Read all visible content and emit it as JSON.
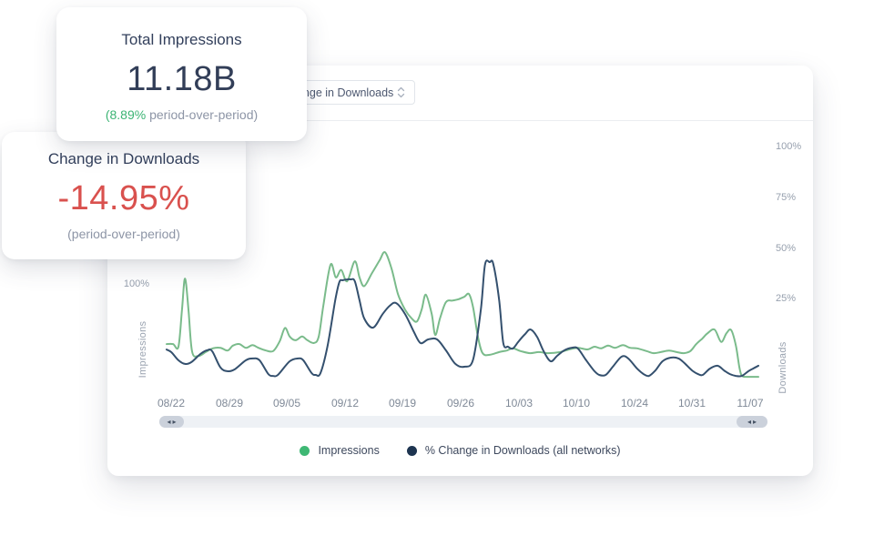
{
  "cards": {
    "impressions": {
      "title": "Total Impressions",
      "value": "11.18B",
      "delta_green": "(8.89%",
      "delta_gray": " period-over-period)"
    },
    "downloads": {
      "title": "Change in Downloads",
      "value": "-14.95%",
      "sub": "(period-over-period)"
    }
  },
  "panel": {
    "dropdown": {
      "value": "Change in Downloads"
    }
  },
  "scrollbar": {
    "left_arrow": "◂",
    "right_arrow": "▸"
  },
  "colors": {
    "accent_green": "#3cb474",
    "negative_red": "#d9514e",
    "navy_text": "#33405c"
  },
  "chart_data": {
    "type": "line",
    "x_ticks": [
      "08/22",
      "08/29",
      "09/05",
      "09/12",
      "09/19",
      "09/26",
      "10/03",
      "10/10",
      "10/24",
      "10/31",
      "11/07"
    ],
    "left_axis": {
      "title": "Impressions",
      "ticks": [
        "100%"
      ],
      "unit": "%"
    },
    "right_axis": {
      "title": "Downloads",
      "ticks": [
        "100%",
        "75%",
        "50%",
        "25%"
      ],
      "unit": "%"
    },
    "legend_position": "bottom",
    "grid": false,
    "series": [
      {
        "name": "Impressions",
        "axis": "left",
        "color": "#7abb8b",
        "dot_color": "#3eb874",
        "points": [
          [
            0,
            44
          ],
          [
            0.011,
            44
          ],
          [
            0.02,
            41.5
          ],
          [
            0.026,
            76
          ],
          [
            0.031,
            105
          ],
          [
            0.037,
            76
          ],
          [
            0.043,
            37
          ],
          [
            0.054,
            33
          ],
          [
            0.066,
            36.5
          ],
          [
            0.078,
            40
          ],
          [
            0.091,
            40.5
          ],
          [
            0.103,
            38
          ],
          [
            0.112,
            42.5
          ],
          [
            0.123,
            44
          ],
          [
            0.134,
            40.5
          ],
          [
            0.145,
            43
          ],
          [
            0.155,
            40.5
          ],
          [
            0.168,
            38
          ],
          [
            0.18,
            37.5
          ],
          [
            0.191,
            46.5
          ],
          [
            0.2,
            59
          ],
          [
            0.208,
            51
          ],
          [
            0.218,
            47.5
          ],
          [
            0.229,
            51
          ],
          [
            0.238,
            47.5
          ],
          [
            0.249,
            45
          ],
          [
            0.257,
            51
          ],
          [
            0.265,
            80.5
          ],
          [
            0.277,
            118
          ],
          [
            0.286,
            106
          ],
          [
            0.295,
            113
          ],
          [
            0.305,
            102.5
          ],
          [
            0.318,
            121
          ],
          [
            0.326,
            106
          ],
          [
            0.334,
            98
          ],
          [
            0.347,
            110
          ],
          [
            0.36,
            122
          ],
          [
            0.369,
            129.5
          ],
          [
            0.38,
            114.5
          ],
          [
            0.391,
            90.5
          ],
          [
            0.403,
            76
          ],
          [
            0.414,
            68
          ],
          [
            0.423,
            65
          ],
          [
            0.431,
            76
          ],
          [
            0.438,
            90
          ],
          [
            0.448,
            72
          ],
          [
            0.454,
            52.5
          ],
          [
            0.462,
            68
          ],
          [
            0.472,
            83
          ],
          [
            0.483,
            84.5
          ],
          [
            0.492,
            85.5
          ],
          [
            0.503,
            88
          ],
          [
            0.511,
            90.5
          ],
          [
            0.518,
            78
          ],
          [
            0.526,
            51
          ],
          [
            0.534,
            35.5
          ],
          [
            0.546,
            34
          ],
          [
            0.562,
            36.5
          ],
          [
            0.575,
            38
          ],
          [
            0.585,
            40
          ],
          [
            0.598,
            37.5
          ],
          [
            0.614,
            35.5
          ],
          [
            0.629,
            36.5
          ],
          [
            0.645,
            35.5
          ],
          [
            0.665,
            36.5
          ],
          [
            0.68,
            39
          ],
          [
            0.695,
            40.5
          ],
          [
            0.711,
            39
          ],
          [
            0.723,
            41.5
          ],
          [
            0.734,
            40
          ],
          [
            0.746,
            42.5
          ],
          [
            0.758,
            40.5
          ],
          [
            0.771,
            43
          ],
          [
            0.783,
            40.5
          ],
          [
            0.795,
            40
          ],
          [
            0.811,
            37.5
          ],
          [
            0.823,
            35.5
          ],
          [
            0.835,
            36.5
          ],
          [
            0.849,
            38
          ],
          [
            0.862,
            36.5
          ],
          [
            0.874,
            35.5
          ],
          [
            0.885,
            37.5
          ],
          [
            0.895,
            44
          ],
          [
            0.905,
            49
          ],
          [
            0.914,
            54
          ],
          [
            0.926,
            57.5
          ],
          [
            0.937,
            46
          ],
          [
            0.946,
            54
          ],
          [
            0.954,
            57
          ],
          [
            0.962,
            42.5
          ],
          [
            0.968,
            22
          ],
          [
            0.972,
            14.5
          ],
          [
            0.98,
            13.5
          ],
          [
            0.991,
            13.5
          ],
          [
            1,
            13.5
          ]
        ]
      },
      {
        "name": "% Change in Downloads (all networks)",
        "axis": "right",
        "color": "#34506e",
        "dot_color": "#1d3450",
        "points": [
          [
            0,
            0.4
          ],
          [
            0.008,
            -0.9
          ],
          [
            0.02,
            -4.9
          ],
          [
            0.031,
            -6.7
          ],
          [
            0.042,
            -5.8
          ],
          [
            0.057,
            -1.8
          ],
          [
            0.068,
            0
          ],
          [
            0.077,
            -0.4
          ],
          [
            0.091,
            -8.5
          ],
          [
            0.103,
            -10.3
          ],
          [
            0.115,
            -9.4
          ],
          [
            0.134,
            -4.9
          ],
          [
            0.146,
            -4
          ],
          [
            0.157,
            -4.9
          ],
          [
            0.172,
            -11.7
          ],
          [
            0.18,
            -12.6
          ],
          [
            0.188,
            -12.1
          ],
          [
            0.208,
            -5.4
          ],
          [
            0.222,
            -4
          ],
          [
            0.231,
            -4.9
          ],
          [
            0.245,
            -11.2
          ],
          [
            0.252,
            -12.1
          ],
          [
            0.26,
            -11.2
          ],
          [
            0.272,
            2.2
          ],
          [
            0.285,
            24.7
          ],
          [
            0.292,
            33.7
          ],
          [
            0.298,
            34.6
          ],
          [
            0.311,
            35
          ],
          [
            0.318,
            34.1
          ],
          [
            0.326,
            24.7
          ],
          [
            0.334,
            15.7
          ],
          [
            0.349,
            11.2
          ],
          [
            0.365,
            17.9
          ],
          [
            0.377,
            22
          ],
          [
            0.388,
            23.3
          ],
          [
            0.403,
            17.9
          ],
          [
            0.418,
            9
          ],
          [
            0.429,
            3.6
          ],
          [
            0.442,
            5.4
          ],
          [
            0.457,
            5.4
          ],
          [
            0.472,
            0
          ],
          [
            0.488,
            -6.7
          ],
          [
            0.503,
            -8.1
          ],
          [
            0.518,
            -4.5
          ],
          [
            0.531,
            20.2
          ],
          [
            0.538,
            42.2
          ],
          [
            0.546,
            43.5
          ],
          [
            0.552,
            42.6
          ],
          [
            0.562,
            24.7
          ],
          [
            0.569,
            3.6
          ],
          [
            0.577,
            1.8
          ],
          [
            0.585,
            0.9
          ],
          [
            0.595,
            4.5
          ],
          [
            0.606,
            8.1
          ],
          [
            0.615,
            10.3
          ],
          [
            0.626,
            6.7
          ],
          [
            0.637,
            -0.4
          ],
          [
            0.649,
            -5.4
          ],
          [
            0.66,
            -2.7
          ],
          [
            0.672,
            0
          ],
          [
            0.685,
            1.3
          ],
          [
            0.695,
            0.9
          ],
          [
            0.708,
            -4.5
          ],
          [
            0.722,
            -9.9
          ],
          [
            0.731,
            -12.1
          ],
          [
            0.742,
            -12.1
          ],
          [
            0.754,
            -8.1
          ],
          [
            0.769,
            -3.1
          ],
          [
            0.78,
            -4
          ],
          [
            0.795,
            -9
          ],
          [
            0.806,
            -11.7
          ],
          [
            0.815,
            -12.6
          ],
          [
            0.826,
            -9.9
          ],
          [
            0.838,
            -5.4
          ],
          [
            0.852,
            -3.6
          ],
          [
            0.865,
            -4
          ],
          [
            0.875,
            -6.3
          ],
          [
            0.888,
            -9.9
          ],
          [
            0.898,
            -11.7
          ],
          [
            0.906,
            -12.1
          ],
          [
            0.918,
            -9
          ],
          [
            0.931,
            -7.6
          ],
          [
            0.942,
            -9.9
          ],
          [
            0.952,
            -11.7
          ],
          [
            0.962,
            -12.6
          ],
          [
            0.972,
            -12.6
          ],
          [
            0.983,
            -10.3
          ],
          [
            0.991,
            -9
          ],
          [
            1,
            -7.6
          ]
        ]
      }
    ]
  }
}
